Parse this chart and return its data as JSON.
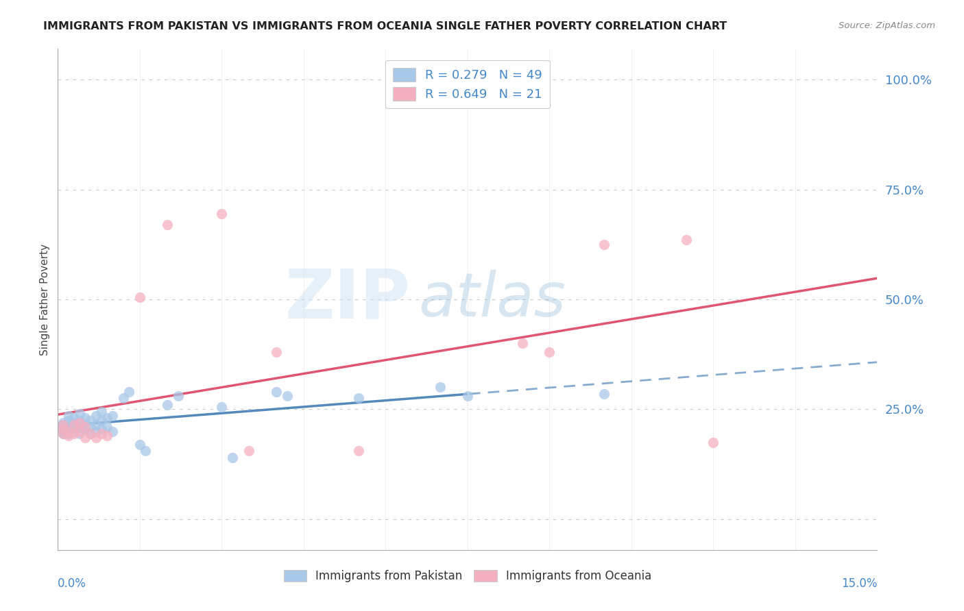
{
  "title": "IMMIGRANTS FROM PAKISTAN VS IMMIGRANTS FROM OCEANIA SINGLE FATHER POVERTY CORRELATION CHART",
  "source": "Source: ZipAtlas.com",
  "ylabel": "Single Father Poverty",
  "y_ticks": [
    0.0,
    0.25,
    0.5,
    0.75,
    1.0
  ],
  "y_tick_labels": [
    "",
    "25.0%",
    "50.0%",
    "75.0%",
    "100.0%"
  ],
  "x_range": [
    0.0,
    0.15
  ],
  "y_range": [
    -0.07,
    1.07
  ],
  "series1_label": "Immigrants from Pakistan",
  "series2_label": "Immigrants from Oceania",
  "series1_color": "#a8c8e8",
  "series2_color": "#f5b0c0",
  "line1_color": "#5588bb",
  "line2_color": "#e05570",
  "watermark_zip": "ZIP",
  "watermark_atlas": "atlas",
  "pakistan_x": [
    0.001,
    0.001,
    0.001,
    0.001,
    0.001,
    0.001,
    0.002,
    0.002,
    0.002,
    0.002,
    0.002,
    0.003,
    0.003,
    0.003,
    0.003,
    0.004,
    0.004,
    0.004,
    0.004,
    0.005,
    0.005,
    0.005,
    0.006,
    0.006,
    0.006,
    0.007,
    0.007,
    0.007,
    0.008,
    0.008,
    0.008,
    0.009,
    0.009,
    0.01,
    0.01,
    0.012,
    0.013,
    0.015,
    0.016,
    0.02,
    0.022,
    0.03,
    0.032,
    0.04,
    0.042,
    0.055,
    0.07,
    0.075,
    0.1
  ],
  "pakistan_y": [
    0.195,
    0.2,
    0.205,
    0.21,
    0.215,
    0.22,
    0.195,
    0.205,
    0.215,
    0.225,
    0.235,
    0.2,
    0.21,
    0.22,
    0.23,
    0.195,
    0.21,
    0.225,
    0.24,
    0.205,
    0.215,
    0.23,
    0.195,
    0.21,
    0.225,
    0.2,
    0.215,
    0.235,
    0.205,
    0.225,
    0.245,
    0.21,
    0.23,
    0.2,
    0.235,
    0.275,
    0.29,
    0.17,
    0.155,
    0.26,
    0.28,
    0.255,
    0.14,
    0.29,
    0.28,
    0.275,
    0.3,
    0.28,
    0.285
  ],
  "oceania_x": [
    0.001,
    0.001,
    0.001,
    0.002,
    0.002,
    0.003,
    0.003,
    0.004,
    0.004,
    0.005,
    0.005,
    0.006,
    0.007,
    0.008,
    0.009,
    0.015,
    0.02,
    0.03,
    0.035,
    0.04,
    0.055,
    0.085,
    0.09,
    0.1,
    0.115,
    0.12
  ],
  "oceania_y": [
    0.195,
    0.205,
    0.215,
    0.19,
    0.2,
    0.195,
    0.215,
    0.2,
    0.22,
    0.185,
    0.21,
    0.195,
    0.185,
    0.195,
    0.19,
    0.505,
    0.67,
    0.695,
    0.155,
    0.38,
    0.155,
    0.4,
    0.38,
    0.625,
    0.635,
    0.175
  ]
}
